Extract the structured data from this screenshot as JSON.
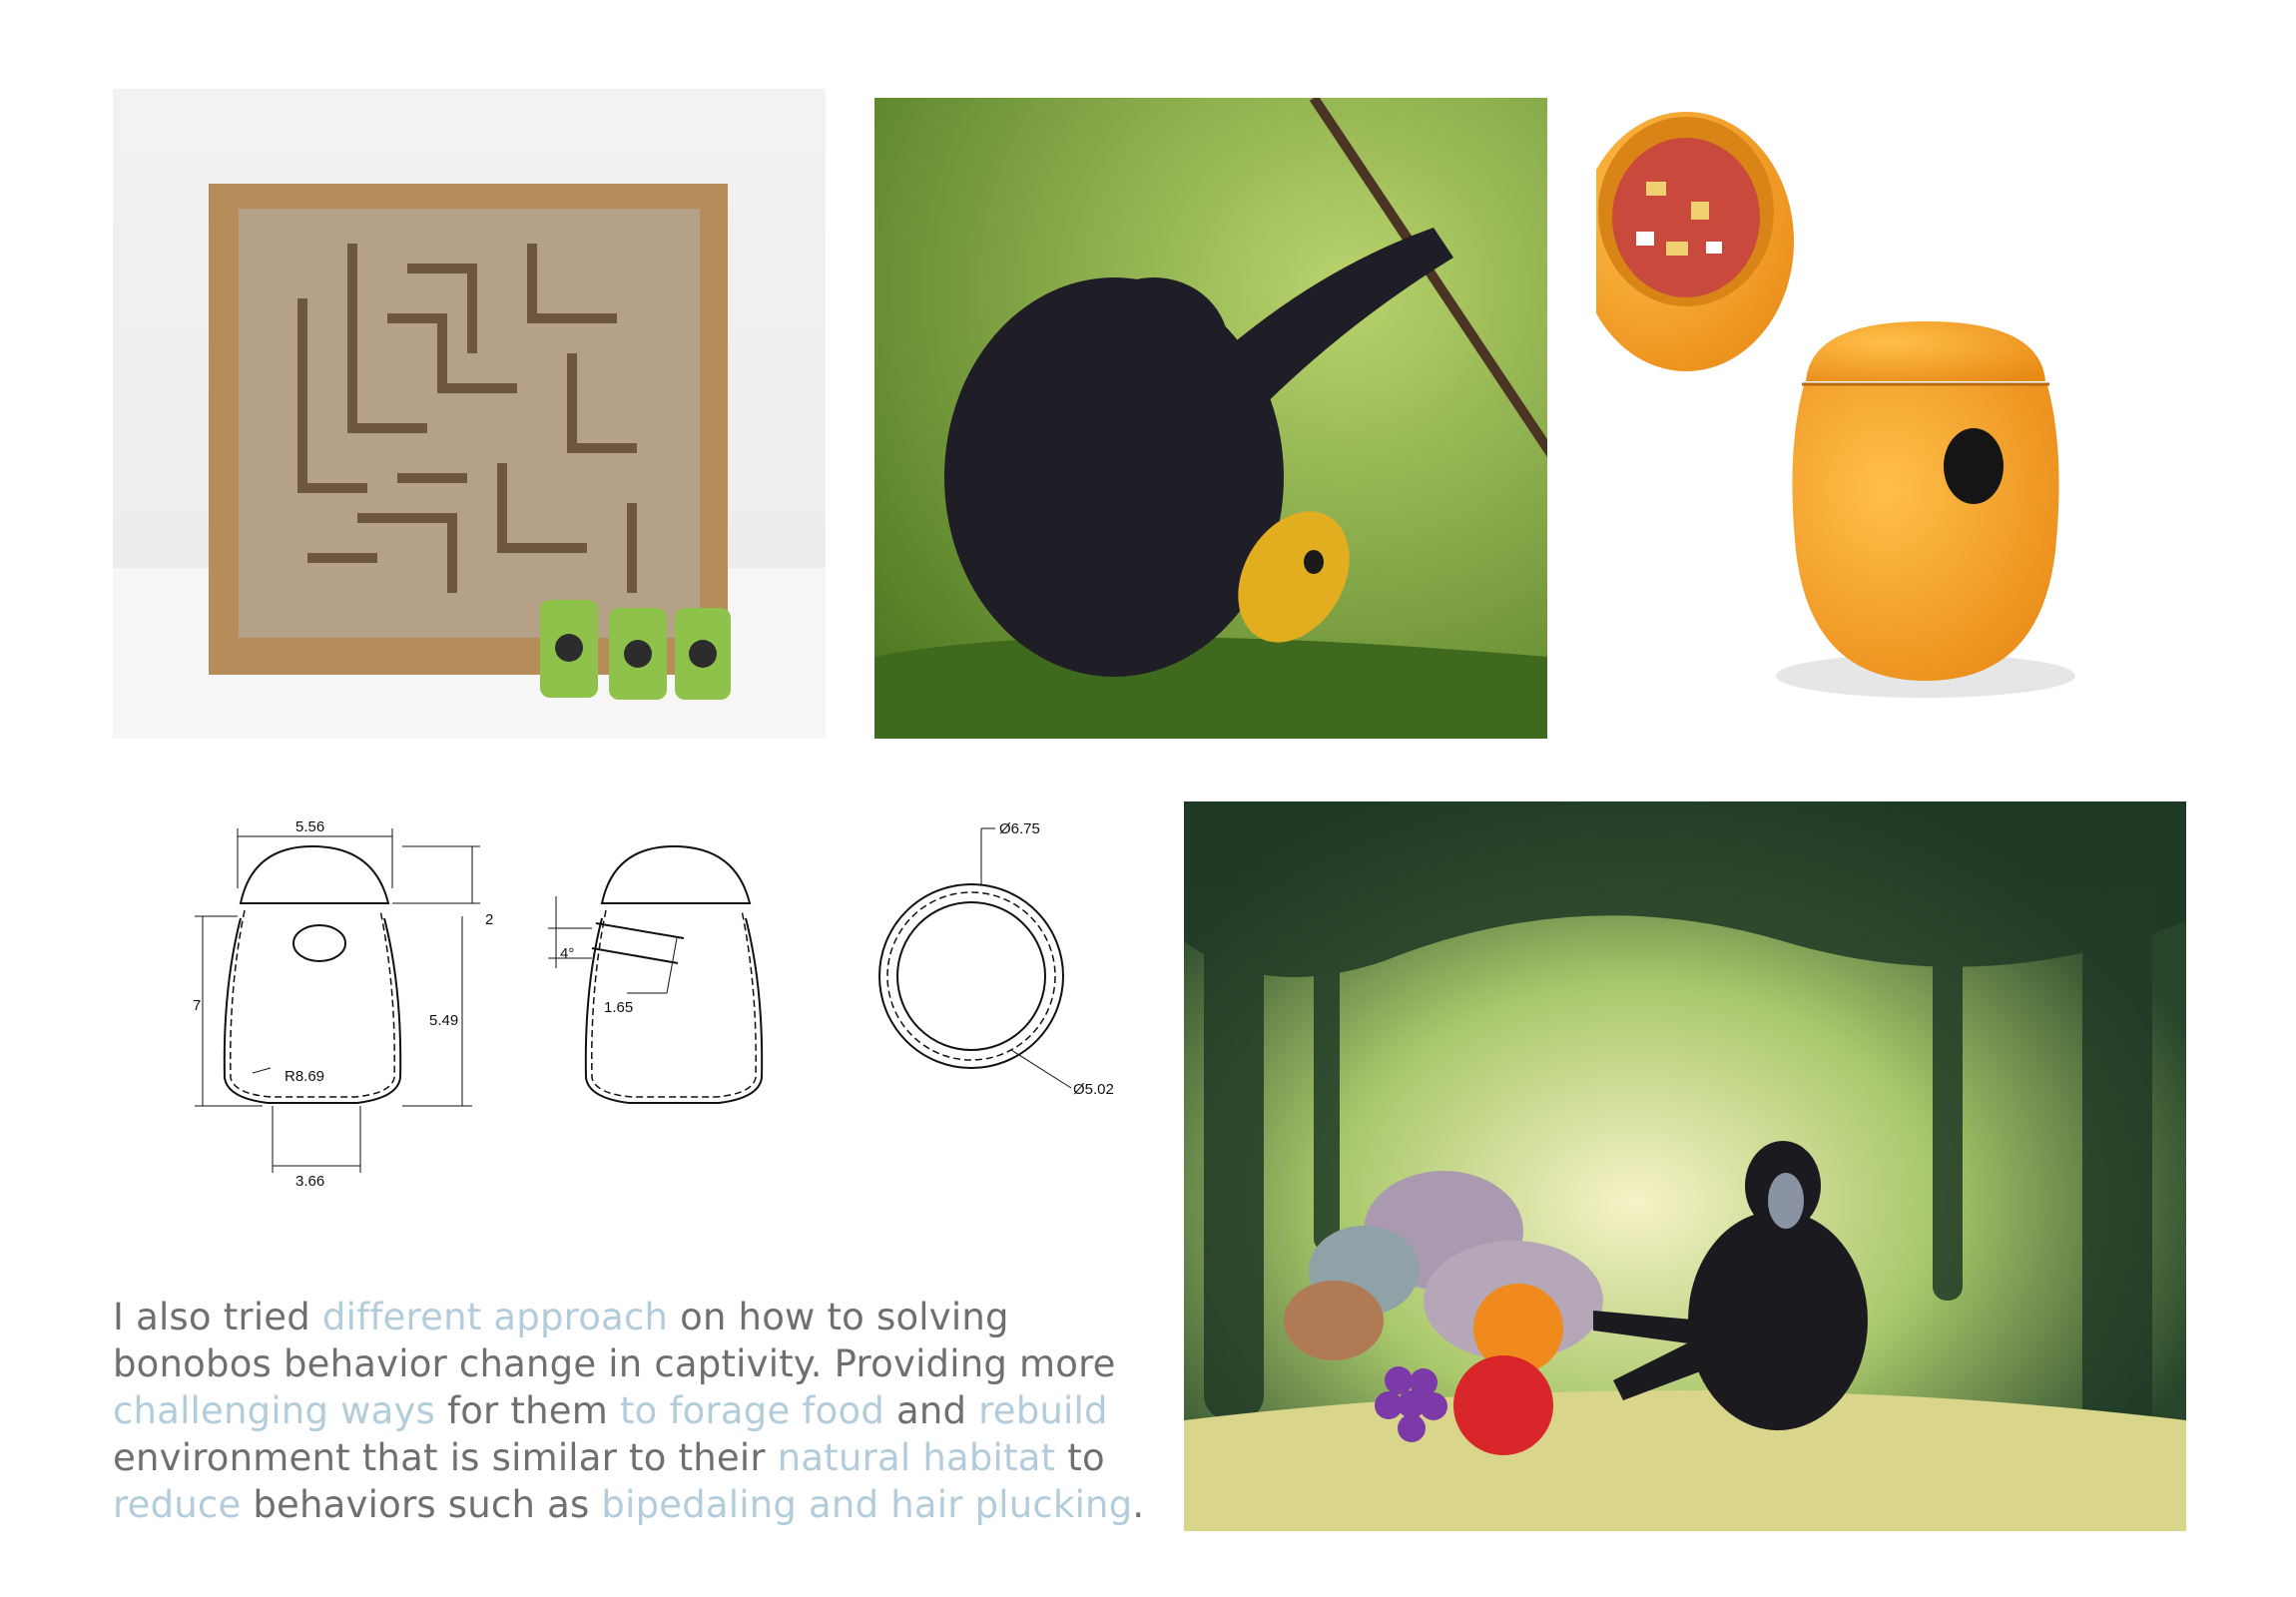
{
  "caption": {
    "t1": "I also tried ",
    "h1": "different approach",
    "t2": " on how to solving bonobos behavior change in captivity. Providing more ",
    "h2": "challenging ways",
    "t3": " for them ",
    "h3": "to forage food",
    "t4": " and ",
    "h4": "rebuild",
    "t5": " environment that is similar to their ",
    "h5": "natural habitat",
    "t6": " to ",
    "h6": "reduce",
    "t7": " behaviors such as ",
    "h7": "bipedaling and hair plucking",
    "t8": "."
  },
  "drawing": {
    "front": {
      "top_width": "5.56",
      "cap_height": "2",
      "total_height": "7",
      "body_height": "5.49",
      "radius": "R8.69",
      "base_width": "3.66"
    },
    "side": {
      "angle": "4°",
      "hole": "1.65"
    },
    "top": {
      "outer_diameter": "Ø6.75",
      "inner_diameter": "Ø5.02"
    }
  },
  "colors": {
    "caption_text": "#6f6f6f",
    "highlight": "#b3ccdc",
    "feeder_orange": "#f4a62a"
  }
}
